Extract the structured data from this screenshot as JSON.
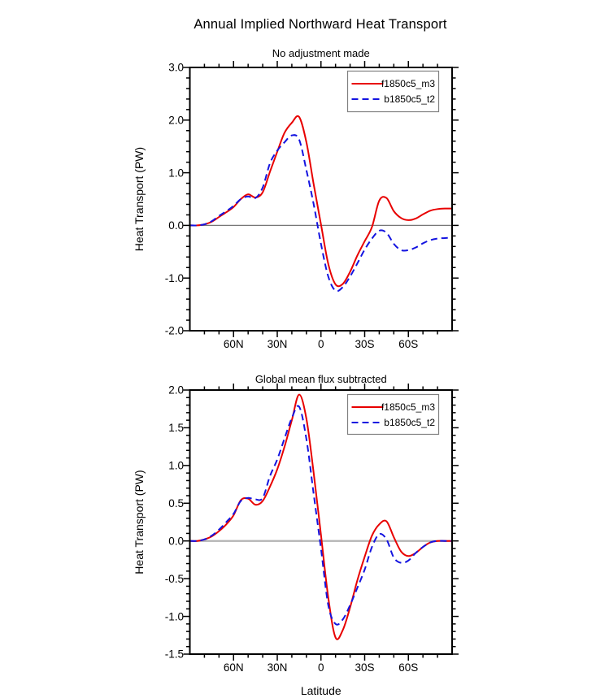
{
  "main_title": "Annual Implied Northward Heat Transport",
  "colors": {
    "red_series": "#e80000",
    "blue_series": "#1414e0",
    "frame": "#000000",
    "legend_border": "#808080",
    "zero_line_top_panel": "#777777",
    "zero_line_bottom_panel": "#b3b3b3",
    "background": "#ffffff"
  },
  "chart_data": [
    {
      "type": "line",
      "title": "No adjustment made",
      "xlabel": "",
      "ylabel": "Heat Transport (PW)",
      "legend_position": "top-right",
      "grid": false,
      "x_axis": {
        "range": [
          90,
          -90
        ],
        "minor_step": 10,
        "label_ticks": [
          {
            "label": "60N",
            "value": 60
          },
          {
            "label": "30N",
            "value": 30
          },
          {
            "label": "0",
            "value": 0
          },
          {
            "label": "30S",
            "value": -30
          },
          {
            "label": "60S",
            "value": -60
          }
        ]
      },
      "y_axis": {
        "range": [
          -2.0,
          3.0
        ],
        "major_step": 1.0,
        "minor_step": 0.2,
        "tick_labels": [
          {
            "label": "3.0",
            "value": 3.0
          },
          {
            "label": "2.0",
            "value": 2.0
          },
          {
            "label": "1.0",
            "value": 1.0
          },
          {
            "label": "0.0",
            "value": 0.0
          },
          {
            "label": "-1.0",
            "value": -1.0
          },
          {
            "label": "-2.0",
            "value": -2.0
          }
        ]
      },
      "x": [
        90,
        85,
        80,
        75,
        70,
        65,
        60,
        55,
        50,
        45,
        40,
        35,
        30,
        25,
        20,
        15,
        10,
        5,
        0,
        -5,
        -10,
        -15,
        -20,
        -25,
        -30,
        -35,
        -40,
        -45,
        -50,
        -55,
        -60,
        -65,
        -70,
        -75,
        -80,
        -85,
        -90
      ],
      "series": [
        {
          "name": "f1850c5_m3",
          "color": "red_series",
          "line": "solid",
          "values": [
            0.0,
            0.0,
            0.02,
            0.07,
            0.16,
            0.25,
            0.35,
            0.5,
            0.59,
            0.53,
            0.63,
            1.02,
            1.4,
            1.76,
            1.95,
            2.06,
            1.58,
            0.78,
            0.02,
            -0.73,
            -1.12,
            -1.11,
            -0.88,
            -0.57,
            -0.3,
            -0.03,
            0.47,
            0.52,
            0.27,
            0.14,
            0.1,
            0.13,
            0.21,
            0.28,
            0.31,
            0.32,
            0.32
          ]
        },
        {
          "name": "b1850c5_t2",
          "color": "blue_series",
          "line": "dashed",
          "values": [
            0.0,
            0.0,
            0.02,
            0.08,
            0.18,
            0.27,
            0.37,
            0.5,
            0.55,
            0.52,
            0.72,
            1.18,
            1.42,
            1.58,
            1.71,
            1.63,
            1.05,
            0.4,
            -0.35,
            -0.97,
            -1.24,
            -1.17,
            -0.97,
            -0.72,
            -0.46,
            -0.25,
            -0.1,
            -0.14,
            -0.35,
            -0.47,
            -0.47,
            -0.42,
            -0.34,
            -0.28,
            -0.25,
            -0.24,
            -0.23
          ]
        }
      ]
    },
    {
      "type": "line",
      "title": "Global mean flux subtracted",
      "xlabel": "Latitude",
      "ylabel": "Heat Transport (PW)",
      "legend_position": "top-right",
      "grid": false,
      "x_axis": {
        "range": [
          90,
          -90
        ],
        "minor_step": 10,
        "label_ticks": [
          {
            "label": "60N",
            "value": 60
          },
          {
            "label": "30N",
            "value": 30
          },
          {
            "label": "0",
            "value": 0
          },
          {
            "label": "30S",
            "value": -30
          },
          {
            "label": "60S",
            "value": -60
          }
        ]
      },
      "y_axis": {
        "range": [
          -1.5,
          2.0
        ],
        "major_step": 0.5,
        "minor_step": 0.1,
        "tick_labels": [
          {
            "label": "2.0",
            "value": 2.0
          },
          {
            "label": "1.5",
            "value": 1.5
          },
          {
            "label": "1.0",
            "value": 1.0
          },
          {
            "label": "0.5",
            "value": 0.5
          },
          {
            "label": "0.0",
            "value": 0.0
          },
          {
            "label": "-0.5",
            "value": -0.5
          },
          {
            "label": "-1.0",
            "value": -1.0
          },
          {
            "label": "-1.5",
            "value": -1.5
          }
        ]
      },
      "x": [
        90,
        85,
        80,
        75,
        70,
        65,
        60,
        55,
        50,
        45,
        40,
        35,
        30,
        25,
        20,
        15,
        10,
        5,
        0,
        -5,
        -10,
        -15,
        -20,
        -25,
        -30,
        -35,
        -40,
        -45,
        -50,
        -55,
        -60,
        -65,
        -70,
        -75,
        -80,
        -85,
        -90
      ],
      "series": [
        {
          "name": "f1850c5_m3",
          "color": "red_series",
          "line": "solid",
          "values": [
            0.0,
            0.0,
            0.02,
            0.06,
            0.13,
            0.22,
            0.34,
            0.54,
            0.56,
            0.48,
            0.53,
            0.72,
            0.95,
            1.25,
            1.6,
            1.94,
            1.62,
            0.9,
            0.08,
            -0.75,
            -1.28,
            -1.18,
            -0.88,
            -0.52,
            -0.21,
            0.07,
            0.22,
            0.26,
            0.05,
            -0.14,
            -0.2,
            -0.16,
            -0.08,
            -0.02,
            0.0,
            0.0,
            0.0
          ]
        },
        {
          "name": "b1850c5_t2",
          "color": "blue_series",
          "line": "dashed",
          "values": [
            0.0,
            0.0,
            0.02,
            0.07,
            0.15,
            0.25,
            0.36,
            0.53,
            0.57,
            0.55,
            0.57,
            0.86,
            1.08,
            1.36,
            1.63,
            1.78,
            1.35,
            0.62,
            -0.1,
            -0.85,
            -1.1,
            -1.04,
            -0.85,
            -0.62,
            -0.38,
            -0.08,
            0.09,
            0.02,
            -0.22,
            -0.29,
            -0.26,
            -0.16,
            -0.08,
            -0.02,
            0.0,
            0.0,
            0.0
          ]
        }
      ]
    }
  ]
}
